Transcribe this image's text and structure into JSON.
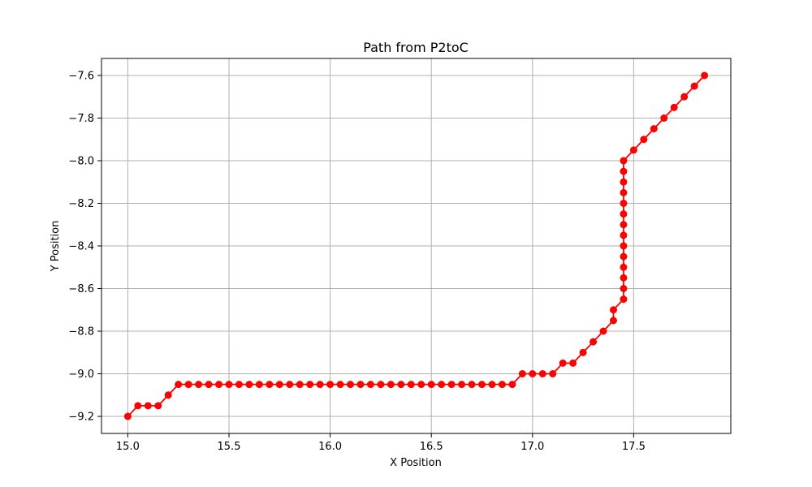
{
  "chart_data": {
    "type": "line",
    "title": "Path from P2toC",
    "xlabel": "X Position",
    "ylabel": "Y Position",
    "xlim": [
      14.87,
      17.98
    ],
    "ylim": [
      -9.28,
      -7.52
    ],
    "xticks": [
      15.0,
      15.5,
      16.0,
      16.5,
      17.0,
      17.5
    ],
    "xtick_labels": [
      "15.0",
      "15.5",
      "16.0",
      "16.5",
      "17.0",
      "17.5"
    ],
    "yticks": [
      -9.2,
      -9.0,
      -8.8,
      -8.6,
      -8.4,
      -8.2,
      -8.0,
      -7.8,
      -7.6
    ],
    "ytick_labels": [
      "−9.2",
      "−9.0",
      "−8.8",
      "−8.6",
      "−8.4",
      "−8.2",
      "−8.0",
      "−7.8",
      "−7.6"
    ],
    "grid": true,
    "colors": {
      "series": "#ff0000",
      "grid": "#b0b0b0"
    },
    "series": [
      {
        "marker": "circle",
        "x": [
          15.0,
          15.05,
          15.1,
          15.15,
          15.2,
          15.25,
          15.3,
          15.35,
          15.4,
          15.45,
          15.5,
          15.55,
          15.6,
          15.65,
          15.7,
          15.75,
          15.8,
          15.85,
          15.9,
          15.95,
          16.0,
          16.05,
          16.1,
          16.15,
          16.2,
          16.25,
          16.3,
          16.35,
          16.4,
          16.45,
          16.5,
          16.55,
          16.6,
          16.65,
          16.7,
          16.75,
          16.8,
          16.85,
          16.9,
          16.95,
          17.0,
          17.05,
          17.1,
          17.15,
          17.2,
          17.25,
          17.3,
          17.35,
          17.4,
          17.4,
          17.45,
          17.45,
          17.45,
          17.45,
          17.45,
          17.45,
          17.45,
          17.45,
          17.45,
          17.45,
          17.45,
          17.45,
          17.45,
          17.45,
          17.5,
          17.55,
          17.6,
          17.65,
          17.7,
          17.75,
          17.8,
          17.85
        ],
        "y": [
          -9.2,
          -9.15,
          -9.15,
          -9.15,
          -9.1,
          -9.05,
          -9.05,
          -9.05,
          -9.05,
          -9.05,
          -9.05,
          -9.05,
          -9.05,
          -9.05,
          -9.05,
          -9.05,
          -9.05,
          -9.05,
          -9.05,
          -9.05,
          -9.05,
          -9.05,
          -9.05,
          -9.05,
          -9.05,
          -9.05,
          -9.05,
          -9.05,
          -9.05,
          -9.05,
          -9.05,
          -9.05,
          -9.05,
          -9.05,
          -9.05,
          -9.05,
          -9.05,
          -9.05,
          -9.05,
          -9.0,
          -9.0,
          -9.0,
          -9.0,
          -8.95,
          -8.95,
          -8.9,
          -8.85,
          -8.8,
          -8.75,
          -8.7,
          -8.65,
          -8.6,
          -8.55,
          -8.5,
          -8.45,
          -8.4,
          -8.35,
          -8.3,
          -8.25,
          -8.2,
          -8.15,
          -8.1,
          -8.05,
          -8.0,
          -7.95,
          -7.9,
          -7.85,
          -7.8,
          -7.75,
          -7.7,
          -7.65,
          -7.6
        ]
      }
    ]
  }
}
